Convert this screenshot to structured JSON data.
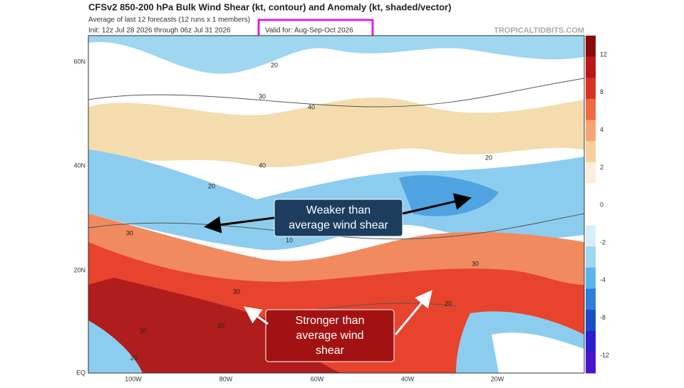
{
  "header": {
    "title": "CFSv2 850-200 hPa Bulk Wind Shear (kt, contour) and Anomaly (kt, shaded/vector)",
    "subtitle": "Average of last 12 forecasts (12 runs x 1 members)",
    "init": "Init: 12z Jul 28 2026 through 06z Jul 31 2026",
    "valid": "Valid for: Aug-Sep-Oct 2026",
    "source": "TROPICALTIDBITS.COM"
  },
  "map": {
    "lat_labels": [
      "60N",
      "40N",
      "20N",
      "EQ"
    ],
    "lon_labels": [
      "100W",
      "80W",
      "60W",
      "40W",
      "20W"
    ],
    "contour_labels": [
      "20",
      "30",
      "40",
      "40",
      "20",
      "20",
      "10",
      "30",
      "30",
      "20",
      "30",
      "20",
      "20",
      "20"
    ]
  },
  "colorbar": {
    "labels": [
      "12",
      "8",
      "4",
      "2",
      "0",
      "-2",
      "-4",
      "-8",
      "-12"
    ]
  },
  "annotations": [
    {
      "lines": [
        "Weaker than",
        "average wind shear"
      ]
    },
    {
      "lines": [
        "Stronger than",
        "average wind",
        "shear"
      ]
    }
  ]
}
